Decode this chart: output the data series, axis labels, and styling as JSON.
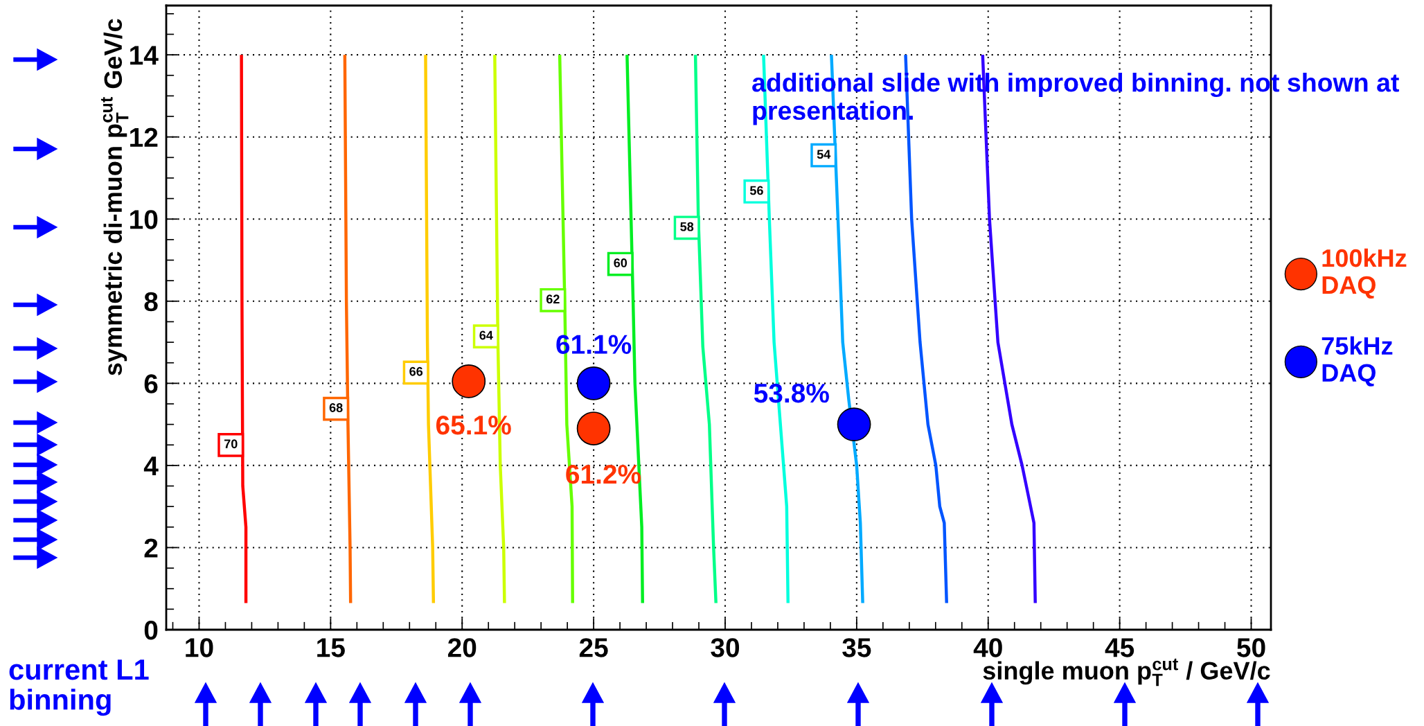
{
  "chart_data": {
    "type": "line",
    "xlabel": "single muon p$^{cut}$$_{T}$ / GeV/c",
    "ylabel": "symmetric di-muon p$^{cut}$$_{T}$ GeV/c",
    "xlim": [
      8.75,
      50.75
    ],
    "ylim": [
      0,
      15.2
    ],
    "xticks": [
      10,
      15,
      20,
      25,
      30,
      35,
      40,
      45,
      50
    ],
    "yticks": [
      0,
      2,
      4,
      6,
      8,
      10,
      12,
      14
    ],
    "grid": true,
    "legend": "right",
    "annotations": [
      "additional slide with improved binning. not shown at presentation.",
      "current L1 binning",
      {
        "text": "65.1%",
        "x": 20.25,
        "y": 6.05
      },
      {
        "text": "61.2%",
        "x": 25,
        "y": 4.9
      },
      {
        "text": "61.1%",
        "x": 25,
        "y": 6.0
      },
      {
        "text": "53.8%",
        "x": 34.9,
        "y": 5.0
      }
    ],
    "series": [
      {
        "name": "70",
        "color": "#ff0000",
        "x": [
          11.78,
          11.78,
          11.66,
          11.63,
          11.61
        ],
        "values": [
          0.65,
          2.5,
          3.5,
          8,
          14
        ]
      },
      {
        "name": "68",
        "color": "#ff6600",
        "x": [
          15.76,
          15.74,
          15.66,
          15.6,
          15.54
        ],
        "values": [
          0.65,
          2,
          5,
          8,
          14
        ]
      },
      {
        "name": "66",
        "color": "#ffcc00",
        "x": [
          18.91,
          18.88,
          18.72,
          18.68,
          18.61
        ],
        "values": [
          0.65,
          2,
          5,
          7,
          14
        ]
      },
      {
        "name": "64",
        "color": "#ccff00",
        "x": [
          21.61,
          21.58,
          21.45,
          21.36,
          21.24
        ],
        "values": [
          0.65,
          2,
          4,
          7,
          14
        ]
      },
      {
        "name": "62",
        "color": "#66ff00",
        "x": [
          24.2,
          24.18,
          23.98,
          23.9,
          23.71
        ],
        "values": [
          0.65,
          3,
          5,
          8,
          14
        ]
      },
      {
        "name": "60",
        "color": "#00ee22",
        "x": [
          26.86,
          26.83,
          26.57,
          26.5,
          26.27
        ],
        "values": [
          0.65,
          2.5,
          6,
          8,
          14
        ]
      },
      {
        "name": "58",
        "color": "#00ff88",
        "x": [
          29.65,
          29.56,
          29.4,
          29.15,
          28.98,
          28.87
        ],
        "values": [
          0.65,
          2,
          5,
          6.9,
          10,
          14
        ]
      },
      {
        "name": "56",
        "color": "#00ffdd",
        "x": [
          32.39,
          32.34,
          32.22,
          31.86,
          31.68,
          31.46
        ],
        "values": [
          0.65,
          3,
          4,
          7,
          10,
          14
        ]
      },
      {
        "name": "54",
        "color": "#00aaff",
        "x": [
          35.23,
          35.14,
          35.0,
          34.7,
          34.47,
          34.29,
          34.04
        ],
        "values": [
          0.65,
          2.6,
          4,
          5.6,
          7,
          10,
          14
        ]
      },
      {
        "color": "#0055ff",
        "x": [
          38.42,
          38.33,
          38.16,
          38.01,
          37.71,
          37.41,
          37.09,
          36.86
        ],
        "values": [
          0.65,
          2.6,
          3,
          4,
          5,
          7,
          10,
          14
        ]
      },
      {
        "color": "#3300ff",
        "x": [
          41.79,
          41.74,
          41.29,
          40.9,
          40.37,
          40.05,
          39.79
        ],
        "values": [
          0.65,
          2.6,
          4,
          5,
          7,
          10,
          14
        ]
      },
      {
        "type": "scatter",
        "name": "100kHz\nDAQ",
        "color": "#ff3300",
        "marker": "circle",
        "x": [
          20.25,
          25
        ],
        "values": [
          6.05,
          4.9
        ]
      },
      {
        "type": "scatter",
        "name": "75kHz\nDAQ",
        "color": "#0000ff",
        "marker": "circle",
        "x": [
          25,
          34.9
        ],
        "values": [
          6.0,
          5.0
        ]
      }
    ]
  }
}
